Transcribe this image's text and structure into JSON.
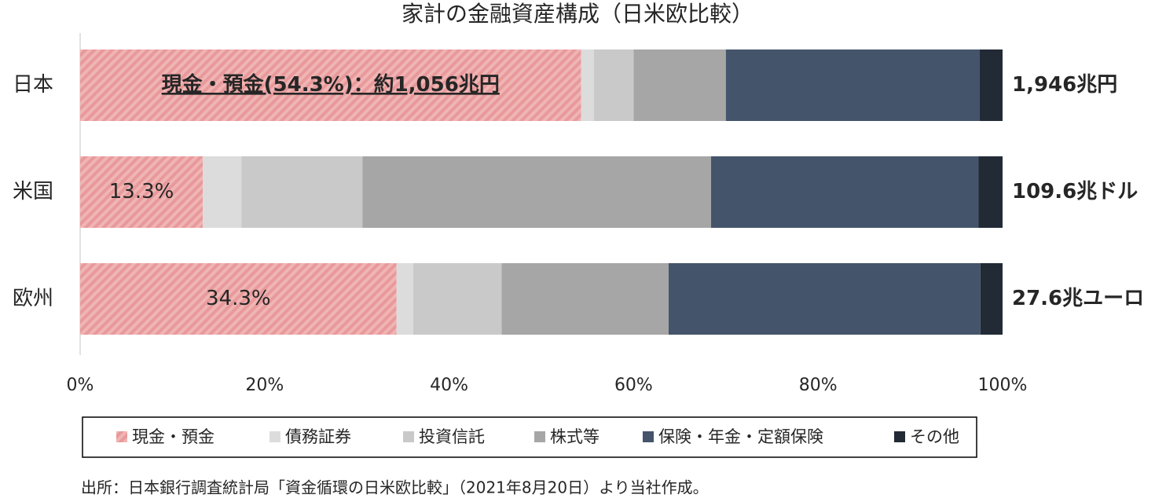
{
  "chart_data": {
    "type": "stacked-bar-horizontal",
    "title": "家計の金融資産構成（日米欧比較）",
    "categories": [
      "日本",
      "米国",
      "欧州"
    ],
    "series": [
      {
        "name": "現金・預金",
        "color": "#e8999a",
        "hatch": true,
        "values": [
          54.3,
          13.3,
          34.3
        ],
        "value_labels": [
          "現金・預金(54.3%)：約1,056兆円",
          "13.3%",
          "34.3%"
        ]
      },
      {
        "name": "債務証券",
        "color": "#dcdcdc",
        "values": [
          1.4,
          4.2,
          1.8
        ]
      },
      {
        "name": "投資信託",
        "color": "#c9c9c9",
        "values": [
          4.3,
          13.1,
          9.6
        ]
      },
      {
        "name": "株式等",
        "color": "#a6a6a6",
        "values": [
          10.0,
          37.8,
          18.1
        ]
      },
      {
        "name": "保険・年金・定額保険",
        "color": "#44546a",
        "values": [
          27.5,
          29.0,
          33.8
        ]
      },
      {
        "name": "その他",
        "color": "#222a35",
        "values": [
          2.5,
          2.6,
          2.4
        ]
      }
    ],
    "total_labels": [
      "1,946兆円",
      "109.6兆ドル",
      "27.6兆ユーロ"
    ],
    "xlim": [
      0,
      100
    ],
    "xticks": [
      {
        "value": 0,
        "label": "0%"
      },
      {
        "value": 20,
        "label": "20%"
      },
      {
        "value": 40,
        "label": "40%"
      },
      {
        "value": 60,
        "label": "60%"
      },
      {
        "value": 80,
        "label": "80%"
      },
      {
        "value": 100,
        "label": "100%"
      }
    ],
    "legend": "bottom",
    "source": "出所：日本銀行調査統計局「資金循環の日米欧比較」（2021年8月20日）より当社作成。"
  }
}
